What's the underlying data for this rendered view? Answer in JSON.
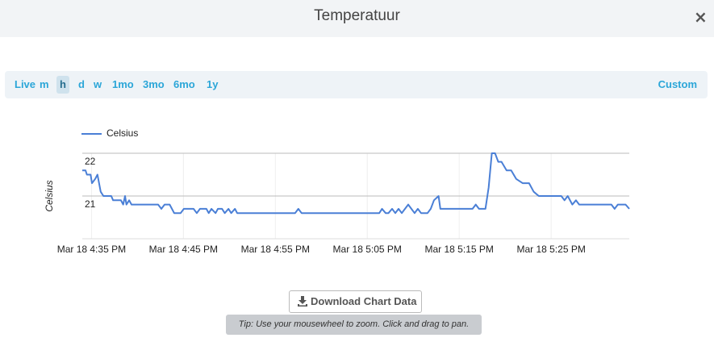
{
  "header": {
    "title": "Temperatuur",
    "close": "×"
  },
  "toolbar": {
    "ranges": [
      "Live",
      "m",
      "h",
      "d",
      "w",
      "1mo",
      "3mo",
      "6mo",
      "1y"
    ],
    "selected": 2,
    "custom": "Custom"
  },
  "chart_data": {
    "type": "line",
    "y_label": "Celsius",
    "x": [
      994.0,
      994.35,
      994.5,
      994.9,
      995.05,
      995.4,
      995.65,
      996.0,
      996.3,
      997.15,
      997.35,
      998.2,
      998.45,
      998.65,
      998.8,
      999.1,
      999.35,
      1002.25,
      1002.6,
      1002.95,
      1003.5,
      1003.75,
      1004.0,
      1004.7,
      1005.05,
      1006.1,
      1006.45,
      1006.8,
      1007.5,
      1007.75,
      1008.05,
      1008.5,
      1008.75,
      1009.2,
      1009.5,
      1009.9,
      1010.2,
      1010.6,
      1010.85,
      1017.15,
      1017.5,
      1017.85,
      1026.3,
      1026.6,
      1027.0,
      1027.3,
      1027.7,
      1028.05,
      1028.4,
      1028.75,
      1029.1,
      1029.45,
      1029.8,
      1030.15,
      1030.5,
      1030.85,
      1031.55,
      1031.9,
      1032.25,
      1032.75,
      1032.95,
      1036.45,
      1036.8,
      1037.15,
      1037.85,
      1038.2,
      1038.55,
      1038.9,
      1039.25,
      1039.6,
      1040.15,
      1040.65,
      1041.2,
      1041.9,
      1042.6,
      1043.1,
      1043.65,
      1046.1,
      1046.45,
      1046.8,
      1047.3,
      1047.7,
      1048.05,
      1051.55,
      1051.9,
      1052.25,
      1053.1,
      1053.5
    ],
    "series": [
      {
        "name": "Celsius",
        "color": "#4a7fd6",
        "values": [
          21.6,
          21.6,
          21.5,
          21.5,
          21.3,
          21.4,
          21.5,
          21.1,
          21.0,
          21.0,
          20.9,
          20.9,
          20.8,
          21.0,
          20.8,
          20.9,
          20.8,
          20.8,
          20.7,
          20.8,
          20.8,
          20.7,
          20.6,
          20.6,
          20.7,
          20.7,
          20.6,
          20.7,
          20.7,
          20.6,
          20.7,
          20.6,
          20.7,
          20.7,
          20.6,
          20.7,
          20.6,
          20.7,
          20.6,
          20.6,
          20.7,
          20.6,
          20.6,
          20.7,
          20.6,
          20.6,
          20.7,
          20.6,
          20.7,
          20.6,
          20.7,
          20.8,
          20.7,
          20.6,
          20.7,
          20.6,
          20.6,
          20.7,
          20.9,
          21.0,
          20.7,
          20.7,
          20.8,
          20.7,
          20.7,
          21.2,
          22.0,
          22.0,
          21.8,
          21.8,
          21.6,
          21.6,
          21.4,
          21.3,
          21.3,
          21.1,
          21.0,
          21.0,
          20.9,
          21.0,
          20.8,
          20.9,
          20.8,
          20.8,
          20.7,
          20.8,
          20.8,
          20.7
        ]
      }
    ],
    "xlim": [
      994,
      1053.5
    ],
    "xticks": [
      {
        "value": 995,
        "label": "Mar 18 4:35 PM"
      },
      {
        "value": 1005,
        "label": "Mar 18 4:45 PM"
      },
      {
        "value": 1015,
        "label": "Mar 18 4:55 PM"
      },
      {
        "value": 1025,
        "label": "Mar 18 5:05 PM"
      },
      {
        "value": 1035,
        "label": "Mar 18 5:15 PM"
      },
      {
        "value": 1045,
        "label": "Mar 18 5:25 PM"
      }
    ],
    "ylim": [
      20,
      22
    ],
    "yticks": [
      21,
      22
    ],
    "grid": true
  },
  "download": "Download Chart Data",
  "tip": "Tip: Use your mousewheel to zoom. Click and drag to pan."
}
